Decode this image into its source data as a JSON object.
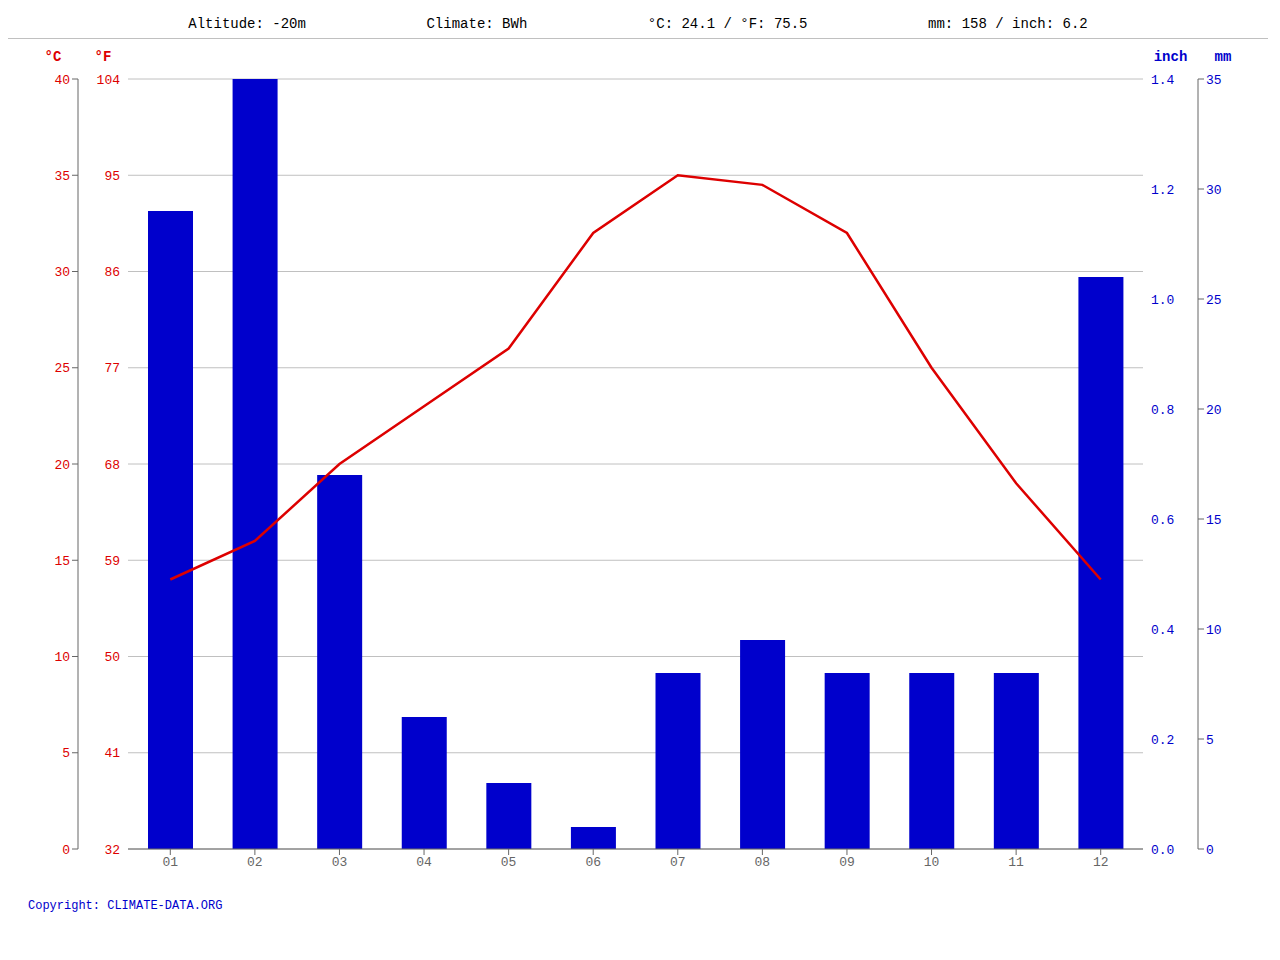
{
  "chart_data": {
    "type": "bar",
    "annotations": [
      "Altitude: -20m",
      "Climate: BWh",
      "°C: 24.1 / °F: 75.5",
      "mm: 158 / inch: 6.2"
    ],
    "caption": "Copyright: CLIMATE-DATA.ORG",
    "categories": [
      "01",
      "02",
      "03",
      "04",
      "05",
      "06",
      "07",
      "08",
      "09",
      "10",
      "11",
      "12"
    ],
    "series": [
      {
        "type": "bar",
        "color": "#0000cc",
        "axis": "y2",
        "values": [
          29,
          35,
          17,
          6,
          3,
          1,
          8,
          9.5,
          8,
          8,
          8,
          26
        ]
      },
      {
        "type": "line",
        "color": "#dd0000",
        "axis": "y",
        "values": [
          14,
          16,
          20,
          23,
          26,
          32,
          35,
          34.5,
          32,
          25,
          19,
          14
        ]
      }
    ],
    "ylabel": "°C",
    "ylabel_f": "°F",
    "ylim": [
      0,
      40
    ],
    "yticks": [
      0,
      5,
      10,
      15,
      20,
      25,
      30,
      35,
      40
    ],
    "yticks_f": [
      32,
      41,
      50,
      59,
      68,
      77,
      86,
      95,
      104
    ],
    "y2label": "mm",
    "y2label_inch": "inch",
    "y2lim": [
      0,
      35
    ],
    "y2ticks": [
      0,
      5,
      10,
      15,
      20,
      25,
      30,
      35
    ],
    "y2ticks_inch": [
      "0.0",
      "0.2",
      "0.4",
      "0.6",
      "0.8",
      "1.0",
      "1.2",
      "1.4"
    ],
    "grid": true
  }
}
